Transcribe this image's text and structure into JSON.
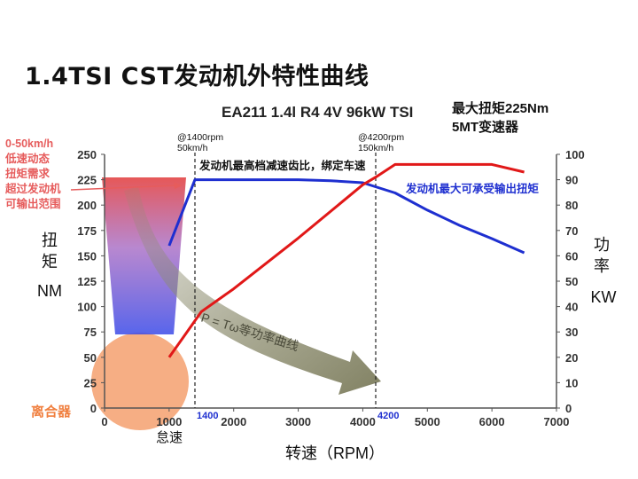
{
  "slide_title": "1.4TSI  CST发动机外特性曲线",
  "chart_data": {
    "type": "line",
    "title": "EA211 1.4l R4 4V 96kW TSI",
    "subtitle_lines": [
      "最大扭矩225Nm",
      "5MT变速器"
    ],
    "xlabel": "转速（RPM）",
    "xlim": [
      0,
      7000
    ],
    "x_ticks": [
      0,
      1000,
      2000,
      3000,
      4000,
      5000,
      6000,
      7000
    ],
    "ylabel_left": [
      "扭",
      "矩",
      "NM"
    ],
    "ylim_left": [
      0,
      250
    ],
    "y_ticks_left": [
      0,
      25,
      50,
      75,
      100,
      125,
      150,
      175,
      200,
      225,
      250
    ],
    "ylabel_right": [
      "功",
      "率",
      "KW"
    ],
    "ylim_right": [
      0,
      100
    ],
    "y_ticks_right": [
      0,
      10,
      20,
      30,
      40,
      50,
      60,
      70,
      80,
      90,
      100
    ],
    "grid": false,
    "series": [
      {
        "name": "",
        "axis": "left",
        "color": "#1e2fd0",
        "x": [
          1000,
          1400,
          1500,
          2000,
          3000,
          3500,
          4000,
          4500,
          5000,
          5500,
          6000,
          6500
        ],
        "y": [
          160,
          225,
          225,
          225,
          225,
          224,
          222,
          212,
          195,
          180,
          167,
          153
        ]
      },
      {
        "name": "",
        "axis": "right",
        "color": "#e11818",
        "x": [
          1000,
          1500,
          2000,
          3000,
          4000,
          4200,
          4500,
          5000,
          5500,
          6000,
          6500
        ],
        "y": [
          20,
          38,
          47,
          67,
          88,
          91,
          96,
          96,
          96,
          96,
          93
        ]
      }
    ],
    "vlines": [
      {
        "x": 1400,
        "label_top": [
          "@1400rpm",
          "50km/h"
        ],
        "label_bottom": "1400"
      },
      {
        "x": 4200,
        "label_top": [
          "@4200rpm",
          "150km/h"
        ],
        "label_bottom": "4200"
      }
    ],
    "annotations": {
      "gear_ratio": "发动机最高档减速齿比，绑定车速",
      "max_torque": "发动机最大可承受输出扭矩",
      "low_speed": [
        "0-50km/h",
        "低速动态",
        "扭矩需求",
        "超过发动机",
        "可输出范围"
      ],
      "power_curve": "P = Tω等功率曲线",
      "clutch": "离合器",
      "idle": "怠速"
    },
    "colors": {
      "torque": "#1e2fd0",
      "power": "#e11818",
      "low_speed_text": "#e65c5c",
      "clutch": "#f4a06e",
      "arrow": "#8c8c6e"
    }
  }
}
